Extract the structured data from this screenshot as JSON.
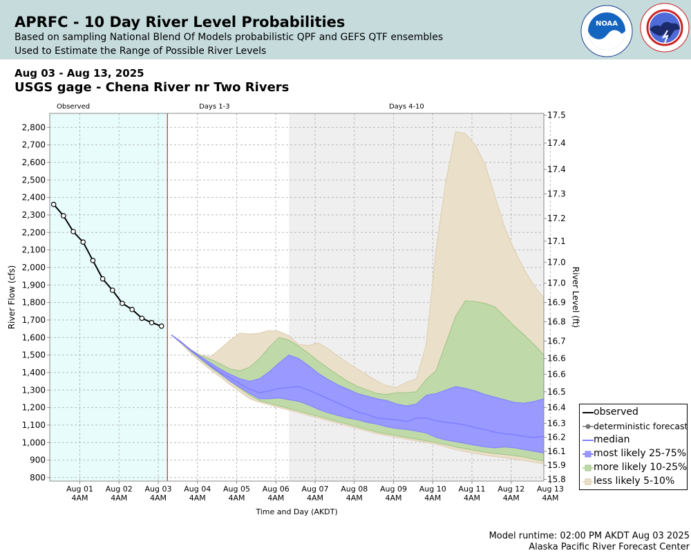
{
  "header": {
    "title": "APRFC - 10 Day River Level Probabilities",
    "subtitle1": "Based on sampling National Blend Of Models probabilistic QPF and GEFS QTF ensembles",
    "subtitle2": "Used to Estimate the Range of Possible River Levels",
    "noaa_logo_text": "NOAA",
    "noaa_ring_text": "NATIONAL OCEANIC AND ATMOSPHERIC ADMINISTRATION · U.S. DEPARTMENT OF COMMERCE",
    "nws_ring_text": "NATIONAL WEATHER SERVICE"
  },
  "date_range": "Aug 03 - Aug 13, 2025",
  "gage_title": "USGS gage - Chena River nr Two Rivers",
  "footer": {
    "runtime": "Model runtime: 02:00 PM AKDT Aug 03 2025",
    "center": "Alaska Pacific River Forecast Center"
  },
  "colors": {
    "observed": "#000000",
    "median": "#7f7fff",
    "band_25_75": "#9999ff",
    "band_10_25": "#bfdaa8",
    "band_5_10": "#eadfc8",
    "observed_bg": "#e8fcfc",
    "days_4_10_bg": "#efefef",
    "forecast_start_line": "#cc0000"
  },
  "chart_data": {
    "type": "area",
    "xlabel": "Time and Day (AKDT)",
    "ylabel": "River Flow (cfs)",
    "ylabel_right": "River Level (ft)",
    "period_labels": [
      "Observed",
      "Days 1-3",
      "Days 4-10"
    ],
    "x_ticks": [
      "Aug 01",
      "Aug 02",
      "Aug 03",
      "Aug 04",
      "Aug 05",
      "Aug 06",
      "Aug 07",
      "Aug 08",
      "Aug 09",
      "Aug 10",
      "Aug 11",
      "Aug 12",
      "Aug 13"
    ],
    "x_tick_sub": "4AM",
    "xlim_days": [
      0.4,
      13.0
    ],
    "shade_observed_days": [
      0.4,
      3.4
    ],
    "shade_days_4_10": [
      6.5,
      13.0
    ],
    "forecast_start_day": 3.4,
    "ylim": [
      780,
      2880
    ],
    "y_ticks": [
      800,
      900,
      1000,
      1100,
      1200,
      1300,
      1400,
      1500,
      1600,
      1700,
      1800,
      1900,
      2000,
      2100,
      2200,
      2300,
      2400,
      2500,
      2600,
      2700,
      2800
    ],
    "y_tick_labels": [
      "800",
      "900",
      "1,000",
      "1,100",
      "1,200",
      "1,300",
      "1,400",
      "1,500",
      "1,600",
      "1,700",
      "1,800",
      "1,900",
      "2,000",
      "2,100",
      "2,200",
      "2,300",
      "2,400",
      "2,500",
      "2,600",
      "2,700",
      "2,800"
    ],
    "right_ticks": [
      {
        "flow": 2870,
        "label": "17.5"
      },
      {
        "flow": 2710,
        "label": "17.4"
      },
      {
        "flow": 2560,
        "label": "17.4"
      },
      {
        "flow": 2420,
        "label": "17.3"
      },
      {
        "flow": 2280,
        "label": "17.2"
      },
      {
        "flow": 2150,
        "label": "17.1"
      },
      {
        "flow": 2030,
        "label": "17.0"
      },
      {
        "flow": 1910,
        "label": "17.0"
      },
      {
        "flow": 1800,
        "label": "16.9"
      },
      {
        "flow": 1690,
        "label": "16.8"
      },
      {
        "flow": 1580,
        "label": "16.7"
      },
      {
        "flow": 1480,
        "label": "16.6"
      },
      {
        "flow": 1390,
        "label": "16.6"
      },
      {
        "flow": 1290,
        "label": "16.5"
      },
      {
        "flow": 1200,
        "label": "16.4"
      },
      {
        "flow": 1110,
        "label": "16.3"
      },
      {
        "flow": 1030,
        "label": "16.2"
      },
      {
        "flow": 950,
        "label": "16.1"
      },
      {
        "flow": 870,
        "label": "15.9"
      },
      {
        "flow": 790,
        "label": "15.8"
      }
    ],
    "observed": {
      "name": "observed",
      "x": [
        0.5,
        0.75,
        1.0,
        1.25,
        1.5,
        1.75,
        2.0,
        2.25,
        2.5,
        2.75,
        3.0,
        3.25
      ],
      "y": [
        2360,
        2295,
        2205,
        2145,
        2040,
        1935,
        1870,
        1795,
        1760,
        1710,
        1685,
        1665
      ]
    },
    "forecast_x": [
      3.5,
      3.75,
      4.0,
      4.25,
      4.5,
      4.75,
      5.0,
      5.25,
      5.5,
      5.75,
      6.0,
      6.25,
      6.5,
      6.75,
      7.0,
      7.25,
      7.5,
      7.75,
      8.0,
      8.25,
      8.5,
      8.75,
      9.0,
      9.25,
      9.5,
      9.75,
      10.0,
      10.25,
      10.5,
      10.75,
      11.0,
      11.25,
      11.5,
      11.75,
      12.0,
      12.25,
      12.5,
      12.75,
      13.0
    ],
    "bands": [
      {
        "name": "less likely 5-10%",
        "upper": [
          1615,
          1575,
          1530,
          1500,
          1490,
          1535,
          1585,
          1625,
          1620,
          1625,
          1640,
          1635,
          1610,
          1560,
          1555,
          1570,
          1535,
          1495,
          1455,
          1420,
          1385,
          1350,
          1325,
          1315,
          1345,
          1365,
          1560,
          2100,
          2490,
          2775,
          2765,
          2700,
          2590,
          2410,
          2230,
          2100,
          1990,
          1895,
          1825
        ],
        "lower": [
          1615,
          1565,
          1510,
          1460,
          1415,
          1375,
          1330,
          1290,
          1250,
          1230,
          1215,
          1200,
          1185,
          1170,
          1155,
          1140,
          1125,
          1110,
          1095,
          1080,
          1065,
          1050,
          1040,
          1030,
          1020,
          1010,
          1000,
          990,
          975,
          960,
          948,
          938,
          928,
          920,
          914,
          906,
          898,
          888,
          878
        ]
      },
      {
        "name": "more likely 10-25%",
        "upper": [
          1615,
          1575,
          1530,
          1495,
          1475,
          1450,
          1420,
          1410,
          1430,
          1480,
          1545,
          1600,
          1585,
          1550,
          1510,
          1465,
          1425,
          1385,
          1350,
          1320,
          1300,
          1280,
          1275,
          1285,
          1285,
          1290,
          1360,
          1410,
          1565,
          1720,
          1810,
          1805,
          1795,
          1775,
          1720,
          1665,
          1615,
          1560,
          1500
        ],
        "lower": [
          1615,
          1570,
          1520,
          1475,
          1430,
          1390,
          1350,
          1310,
          1270,
          1240,
          1225,
          1210,
          1195,
          1180,
          1165,
          1150,
          1135,
          1120,
          1105,
          1090,
          1075,
          1060,
          1050,
          1040,
          1030,
          1020,
          1010,
          1000,
          988,
          975,
          965,
          955,
          945,
          938,
          932,
          925,
          918,
          905,
          895
        ]
      },
      {
        "name": "most likely 25-75%",
        "upper": [
          1615,
          1575,
          1530,
          1490,
          1455,
          1420,
          1390,
          1365,
          1350,
          1365,
          1405,
          1455,
          1500,
          1480,
          1440,
          1395,
          1360,
          1330,
          1305,
          1280,
          1265,
          1250,
          1240,
          1220,
          1210,
          1220,
          1270,
          1280,
          1300,
          1320,
          1310,
          1295,
          1275,
          1260,
          1245,
          1230,
          1225,
          1235,
          1250
        ],
        "lower": [
          1615,
          1570,
          1525,
          1480,
          1435,
          1395,
          1350,
          1315,
          1280,
          1250,
          1250,
          1255,
          1245,
          1235,
          1215,
          1190,
          1170,
          1155,
          1140,
          1130,
          1115,
          1105,
          1090,
          1080,
          1075,
          1065,
          1055,
          1030,
          1015,
          1005,
          995,
          985,
          975,
          970,
          975,
          970,
          960,
          950,
          940
        ]
      }
    ],
    "median": {
      "name": "median",
      "x": [
        3.5,
        3.75,
        4.0,
        4.25,
        4.5,
        4.75,
        5.0,
        5.25,
        5.5,
        5.75,
        6.0,
        6.25,
        6.5,
        6.75,
        7.0,
        7.25,
        7.5,
        7.75,
        8.0,
        8.25,
        8.5,
        8.75,
        9.0,
        9.25,
        9.5,
        9.75,
        10.0,
        10.25,
        10.5,
        10.75,
        11.0,
        11.25,
        11.5,
        11.75,
        12.0,
        12.25,
        12.5,
        12.75,
        13.0
      ],
      "y": [
        1615,
        1575,
        1525,
        1480,
        1440,
        1400,
        1370,
        1335,
        1305,
        1285,
        1295,
        1310,
        1315,
        1320,
        1300,
        1275,
        1250,
        1225,
        1200,
        1175,
        1160,
        1140,
        1135,
        1130,
        1120,
        1140,
        1140,
        1125,
        1115,
        1110,
        1100,
        1085,
        1075,
        1060,
        1050,
        1045,
        1035,
        1030,
        1035
      ]
    },
    "legend": {
      "placement": "bottom-right",
      "items": [
        "observed",
        "deterministic forecast",
        "median",
        "most likely 25-75%",
        "more likely 10-25%",
        "less likely 5-10%"
      ]
    }
  }
}
